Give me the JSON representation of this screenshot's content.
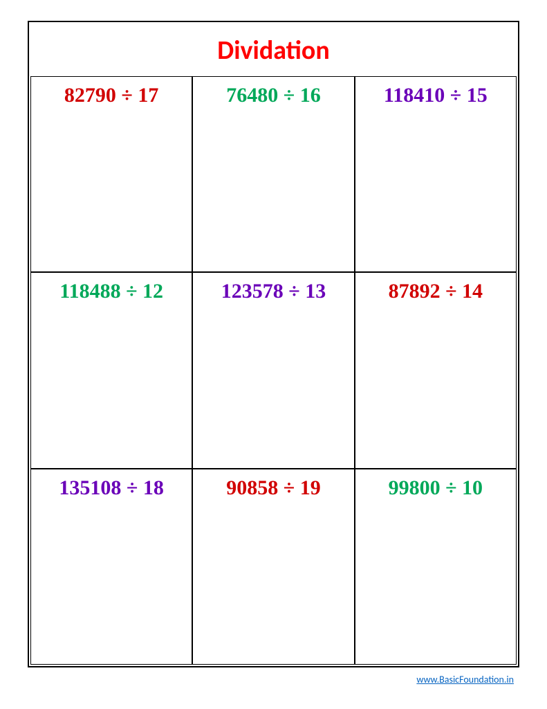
{
  "title": {
    "text": "Dividation",
    "color": "#ff0000"
  },
  "grid": {
    "rows": 3,
    "cols": 3,
    "cells": [
      {
        "dividend": "82790",
        "divisor": "17",
        "color": "#d10000"
      },
      {
        "dividend": "76480",
        "divisor": "16",
        "color": "#00a859"
      },
      {
        "dividend": "118410",
        "divisor": "15",
        "color": "#6a00b8"
      },
      {
        "dividend": "118488",
        "divisor": "12",
        "color": "#00a859"
      },
      {
        "dividend": "123578",
        "divisor": "13",
        "color": "#6a00b8"
      },
      {
        "dividend": "87892",
        "divisor": "14",
        "color": "#d10000"
      },
      {
        "dividend": "135108",
        "divisor": "18",
        "color": "#6a00b8"
      },
      {
        "dividend": "90858",
        "divisor": "19",
        "color": "#d10000"
      },
      {
        "dividend": "99800",
        "divisor": "10",
        "color": "#00a859"
      }
    ]
  },
  "watermark": {
    "text": "www.BasicFoundation.in",
    "color": "rgba(128,128,128,0.28)"
  },
  "footer": {
    "link_text": "www.BasicFoundation.in",
    "link_color": "#0563c1"
  },
  "colors": {
    "page_bg": "#ffffff",
    "border": "#000000",
    "red": "#d10000",
    "green": "#00a859",
    "purple": "#6a00b8"
  },
  "division_symbol": "÷"
}
